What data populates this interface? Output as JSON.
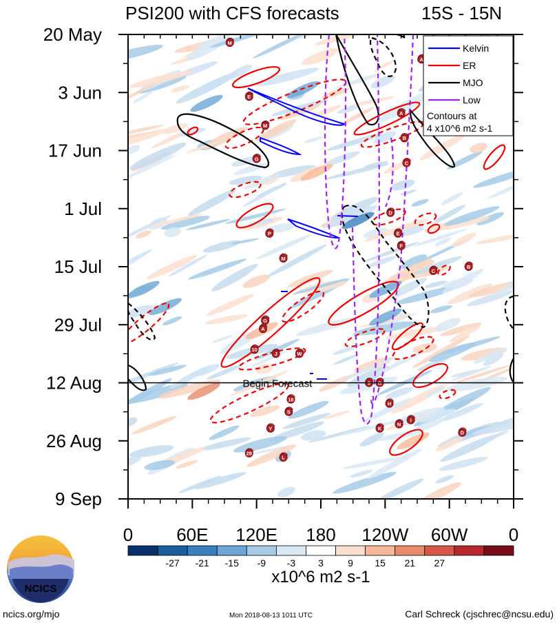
{
  "chart_data": {
    "type": "heatmap",
    "title": "PSI200 with CFS forecasts",
    "region": "15S - 15N",
    "x_tick_labels": [
      "0",
      "60E",
      "120E",
      "180",
      "120W",
      "60W",
      "0"
    ],
    "y_tick_labels": [
      "20 May",
      "3 Jun",
      "17 Jun",
      "1 Jul",
      "15 Jul",
      "29 Jul",
      "12 Aug",
      "26 Aug",
      "9 Sep"
    ],
    "xlim_deg_east": [
      0,
      360
    ],
    "ylim_days_from_20_may": [
      0,
      112
    ],
    "forecast_start_day": 84,
    "forecast_label": "Begin Forecast",
    "legend": {
      "entries": [
        {
          "name": "Kelvin",
          "color": "#0000ff"
        },
        {
          "name": "ER",
          "color": "#ee0000"
        },
        {
          "name": "MJO",
          "color": "#000000"
        },
        {
          "name": "Low",
          "color": "#a020f0"
        }
      ],
      "note_line1": "Contours at",
      "note_line2": "4 x10^6 m2 s-1"
    },
    "colorbar": {
      "labels": [
        "-27",
        "-21",
        "-15",
        "-9",
        "-3",
        "3",
        "9",
        "15",
        "21",
        "27"
      ],
      "colors": [
        "#08306b",
        "#1c5c9c",
        "#3a7fc0",
        "#6ba6d6",
        "#a6cbe7",
        "#d9e9f5",
        "#ffffff",
        "#fbe0d0",
        "#f7b999",
        "#ea8a6c",
        "#d65848",
        "#b7282e",
        "#7a0c19"
      ],
      "units": "x10^6 m2 s-1"
    },
    "storms": [
      {
        "label": "M",
        "lon": 95,
        "day": 2
      },
      {
        "label": "A",
        "lon": 274,
        "day": 6
      },
      {
        "label": "E",
        "lon": 113,
        "day": 15
      },
      {
        "label": "M",
        "lon": 128,
        "day": 22
      },
      {
        "label": "A",
        "lon": 255,
        "day": 19
      },
      {
        "label": "B",
        "lon": 258,
        "day": 25
      },
      {
        "label": "G",
        "lon": 120,
        "day": 30
      },
      {
        "label": "C",
        "lon": 260,
        "day": 31
      },
      {
        "label": "D",
        "lon": 245,
        "day": 43
      },
      {
        "label": "P",
        "lon": 132,
        "day": 48
      },
      {
        "label": "E",
        "lon": 252,
        "day": 48
      },
      {
        "label": "F",
        "lon": 255,
        "day": 51
      },
      {
        "label": "M",
        "lon": 145,
        "day": 54
      },
      {
        "label": "C",
        "lon": 285,
        "day": 57
      },
      {
        "label": "B",
        "lon": 318,
        "day": 56
      },
      {
        "label": "G",
        "lon": 128,
        "day": 69
      },
      {
        "label": "A",
        "lon": 126,
        "day": 71
      },
      {
        "label": "10",
        "lon": 118,
        "day": 76
      },
      {
        "label": "J",
        "lon": 138,
        "day": 77
      },
      {
        "label": "W",
        "lon": 160,
        "day": 77
      },
      {
        "label": "9",
        "lon": 225,
        "day": 84
      },
      {
        "label": "G",
        "lon": 235,
        "day": 84
      },
      {
        "label": "16",
        "lon": 152,
        "day": 88
      },
      {
        "label": "H",
        "lon": 244,
        "day": 89
      },
      {
        "label": "S",
        "lon": 150,
        "day": 91
      },
      {
        "label": "Y",
        "lon": 133,
        "day": 95
      },
      {
        "label": "K",
        "lon": 235,
        "day": 95
      },
      {
        "label": "N",
        "lon": 253,
        "day": 94
      },
      {
        "label": "I",
        "lon": 264,
        "day": 93
      },
      {
        "label": "D",
        "lon": 312,
        "day": 96
      },
      {
        "label": "28",
        "lon": 113,
        "day": 101
      },
      {
        "label": "L",
        "lon": 145,
        "day": 102
      }
    ]
  },
  "logo": {
    "text": "NCICS"
  },
  "footer": {
    "website": "ncics.org/mjo",
    "timestamp": "Mon 2018-08-13 1011 UTC",
    "author": "Carl Schreck (cjschrec@ncsu.edu)"
  }
}
